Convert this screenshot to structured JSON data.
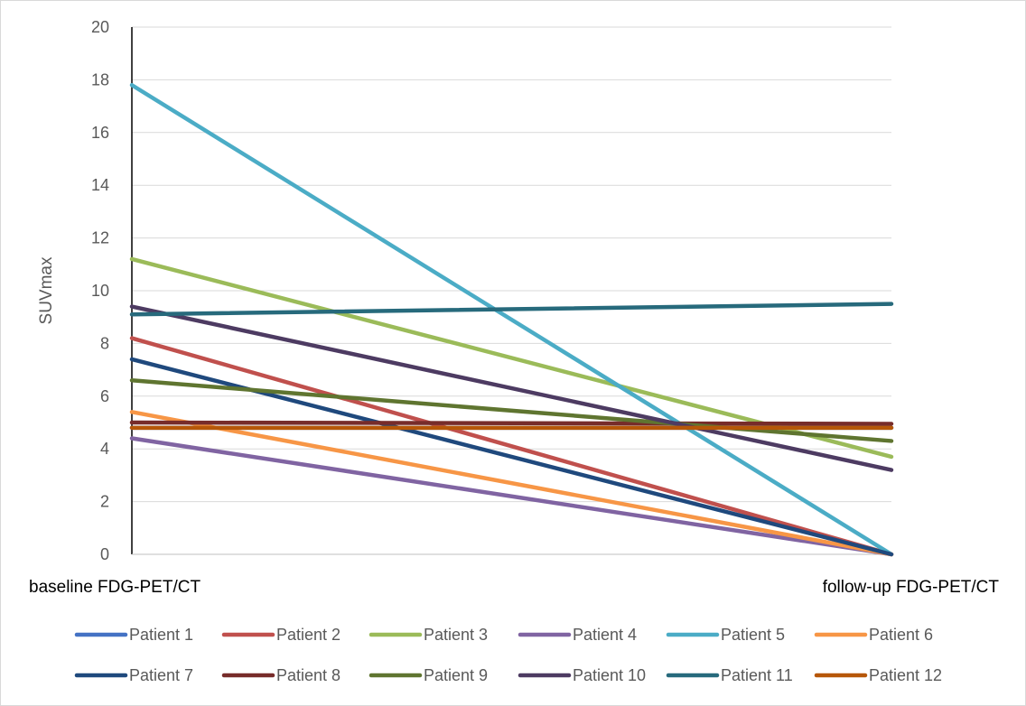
{
  "chart_data": {
    "type": "line",
    "title": "",
    "xlabel": "",
    "ylabel": "SUVmax",
    "categories": [
      "baseline FDG-PET/CT",
      "follow-up FDG-PET/CT"
    ],
    "ylim": [
      0,
      20
    ],
    "yticks": [
      0,
      2,
      4,
      6,
      8,
      10,
      12,
      14,
      16,
      18,
      20
    ],
    "grid": true,
    "legend_position": "bottom",
    "series": [
      {
        "name": "Patient 1",
        "color": "#4472C4",
        "values": [
          4.8,
          4.8
        ]
      },
      {
        "name": "Patient 2",
        "color": "#C0504D",
        "values": [
          8.2,
          0
        ]
      },
      {
        "name": "Patient 3",
        "color": "#9BBB59",
        "values": [
          11.2,
          3.7
        ]
      },
      {
        "name": "Patient 4",
        "color": "#8064A2",
        "values": [
          4.4,
          0
        ]
      },
      {
        "name": "Patient 5",
        "color": "#4BACC6",
        "values": [
          17.8,
          0
        ]
      },
      {
        "name": "Patient 6",
        "color": "#F79646",
        "values": [
          5.4,
          0
        ]
      },
      {
        "name": "Patient 7",
        "color": "#1F497D",
        "values": [
          7.4,
          0
        ]
      },
      {
        "name": "Patient 8",
        "color": "#772C2A",
        "values": [
          5.0,
          4.95
        ]
      },
      {
        "name": "Patient 9",
        "color": "#5F7530",
        "values": [
          6.6,
          4.3
        ]
      },
      {
        "name": "Patient 10",
        "color": "#4D3B62",
        "values": [
          9.4,
          3.2
        ]
      },
      {
        "name": "Patient 11",
        "color": "#276A7C",
        "values": [
          9.1,
          9.5
        ]
      },
      {
        "name": "Patient 12",
        "color": "#B65708",
        "values": [
          4.8,
          4.8
        ]
      }
    ]
  }
}
